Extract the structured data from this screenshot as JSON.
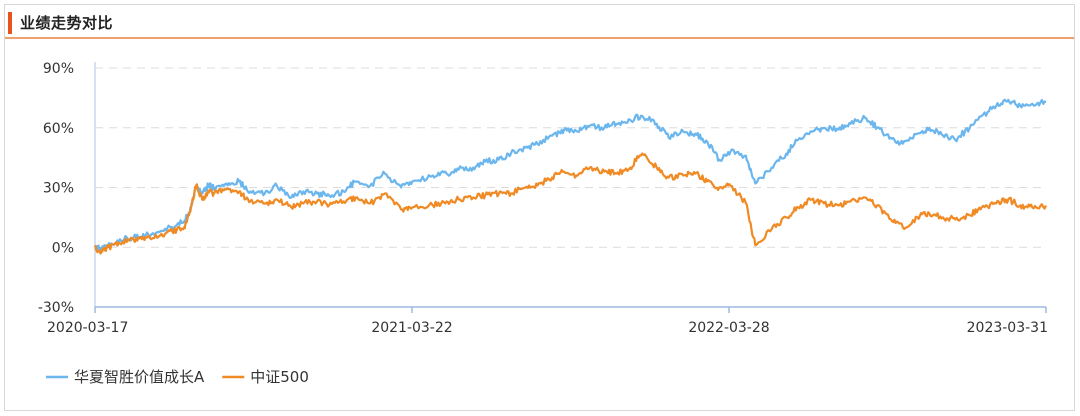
{
  "header": {
    "title": "业绩走势对比"
  },
  "chart_data": {
    "type": "line",
    "ylim": [
      -30,
      90
    ],
    "yticks": [
      -30,
      0,
      30,
      60,
      90
    ],
    "ytick_labels": [
      "-30%",
      "0%",
      "30%",
      "60%",
      "90%"
    ],
    "xlim": [
      "2020-03-17",
      "2023-03-31"
    ],
    "xtick_labels": [
      "2020-03-17",
      "2021-03-22",
      "2022-03-28",
      "2023-03-31"
    ],
    "grid": true,
    "legend_position": "bottom-left",
    "series": [
      {
        "name": "华夏智胜价值成长A",
        "color": "#6cb6ee",
        "points": [
          [
            "2020-03-17",
            0
          ],
          [
            "2020-03-24",
            -1
          ],
          [
            "2020-04-01",
            1
          ],
          [
            "2020-04-15",
            4
          ],
          [
            "2020-05-01",
            5
          ],
          [
            "2020-05-15",
            6
          ],
          [
            "2020-06-01",
            8
          ],
          [
            "2020-06-15",
            10
          ],
          [
            "2020-06-29",
            13
          ],
          [
            "2020-07-07",
            20
          ],
          [
            "2020-07-13",
            31
          ],
          [
            "2020-07-20",
            27
          ],
          [
            "2020-07-27",
            31
          ],
          [
            "2020-08-03",
            30
          ],
          [
            "2020-08-17",
            32
          ],
          [
            "2020-09-01",
            33
          ],
          [
            "2020-09-14",
            28
          ],
          [
            "2020-10-01",
            27
          ],
          [
            "2020-10-15",
            31
          ],
          [
            "2020-11-01",
            25
          ],
          [
            "2020-11-15",
            28
          ],
          [
            "2020-12-01",
            27
          ],
          [
            "2020-12-15",
            26
          ],
          [
            "2021-01-01",
            28
          ],
          [
            "2021-01-15",
            33
          ],
          [
            "2021-02-01",
            31
          ],
          [
            "2021-02-18",
            37
          ],
          [
            "2021-03-09",
            30
          ],
          [
            "2021-03-22",
            33
          ],
          [
            "2021-04-15",
            36
          ],
          [
            "2021-05-01",
            37
          ],
          [
            "2021-05-15",
            39
          ],
          [
            "2021-06-01",
            40
          ],
          [
            "2021-06-15",
            43
          ],
          [
            "2021-07-01",
            44
          ],
          [
            "2021-07-15",
            47
          ],
          [
            "2021-08-01",
            50
          ],
          [
            "2021-08-15",
            52
          ],
          [
            "2021-09-01",
            56
          ],
          [
            "2021-09-15",
            59
          ],
          [
            "2021-10-01",
            58
          ],
          [
            "2021-10-15",
            61
          ],
          [
            "2021-11-01",
            60
          ],
          [
            "2021-11-15",
            62
          ],
          [
            "2021-12-01",
            64
          ],
          [
            "2021-12-15",
            66
          ],
          [
            "2022-01-01",
            62
          ],
          [
            "2022-01-15",
            55
          ],
          [
            "2022-02-01",
            58
          ],
          [
            "2022-02-15",
            57
          ],
          [
            "2022-03-01",
            53
          ],
          [
            "2022-03-15",
            44
          ],
          [
            "2022-03-28",
            48
          ],
          [
            "2022-04-15",
            46
          ],
          [
            "2022-04-26",
            32
          ],
          [
            "2022-05-15",
            40
          ],
          [
            "2022-06-01",
            47
          ],
          [
            "2022-06-15",
            54
          ],
          [
            "2022-07-01",
            58
          ],
          [
            "2022-07-15",
            60
          ],
          [
            "2022-08-01",
            59
          ],
          [
            "2022-08-15",
            62
          ],
          [
            "2022-09-01",
            65
          ],
          [
            "2022-09-15",
            60
          ],
          [
            "2022-10-01",
            55
          ],
          [
            "2022-10-15",
            52
          ],
          [
            "2022-11-01",
            57
          ],
          [
            "2022-11-15",
            60
          ],
          [
            "2022-12-01",
            56
          ],
          [
            "2022-12-15",
            54
          ],
          [
            "2023-01-01",
            60
          ],
          [
            "2023-01-15",
            66
          ],
          [
            "2023-02-01",
            71
          ],
          [
            "2023-02-15",
            74
          ],
          [
            "2023-03-01",
            71
          ],
          [
            "2023-03-15",
            72
          ],
          [
            "2023-03-31",
            73
          ]
        ]
      },
      {
        "name": "中证500",
        "color": "#f08a24",
        "points": [
          [
            "2020-03-17",
            0
          ],
          [
            "2020-03-24",
            -3
          ],
          [
            "2020-04-01",
            0
          ],
          [
            "2020-04-15",
            2
          ],
          [
            "2020-05-01",
            4
          ],
          [
            "2020-05-15",
            5
          ],
          [
            "2020-06-01",
            6
          ],
          [
            "2020-06-15",
            8
          ],
          [
            "2020-06-29",
            10
          ],
          [
            "2020-07-07",
            20
          ],
          [
            "2020-07-13",
            31
          ],
          [
            "2020-07-20",
            24
          ],
          [
            "2020-07-27",
            28
          ],
          [
            "2020-08-03",
            27
          ],
          [
            "2020-08-17",
            29
          ],
          [
            "2020-09-01",
            28
          ],
          [
            "2020-09-14",
            23
          ],
          [
            "2020-10-01",
            22
          ],
          [
            "2020-10-15",
            24
          ],
          [
            "2020-11-01",
            20
          ],
          [
            "2020-11-15",
            22
          ],
          [
            "2020-12-01",
            23
          ],
          [
            "2020-12-15",
            21
          ],
          [
            "2021-01-01",
            23
          ],
          [
            "2021-01-15",
            25
          ],
          [
            "2021-02-01",
            22
          ],
          [
            "2021-02-18",
            27
          ],
          [
            "2021-03-09",
            19
          ],
          [
            "2021-03-22",
            20
          ],
          [
            "2021-04-15",
            21
          ],
          [
            "2021-05-01",
            23
          ],
          [
            "2021-05-15",
            24
          ],
          [
            "2021-06-01",
            25
          ],
          [
            "2021-06-15",
            26
          ],
          [
            "2021-07-01",
            27
          ],
          [
            "2021-07-15",
            27
          ],
          [
            "2021-08-01",
            30
          ],
          [
            "2021-08-15",
            31
          ],
          [
            "2021-09-01",
            35
          ],
          [
            "2021-09-15",
            38
          ],
          [
            "2021-10-01",
            36
          ],
          [
            "2021-10-15",
            40
          ],
          [
            "2021-11-01",
            38
          ],
          [
            "2021-11-15",
            37
          ],
          [
            "2021-12-01",
            40
          ],
          [
            "2021-12-15",
            47
          ],
          [
            "2022-01-01",
            40
          ],
          [
            "2022-01-15",
            35
          ],
          [
            "2022-02-01",
            36
          ],
          [
            "2022-02-15",
            37
          ],
          [
            "2022-03-01",
            33
          ],
          [
            "2022-03-15",
            30
          ],
          [
            "2022-03-28",
            31
          ],
          [
            "2022-04-15",
            22
          ],
          [
            "2022-04-26",
            1
          ],
          [
            "2022-05-15",
            9
          ],
          [
            "2022-06-01",
            15
          ],
          [
            "2022-06-15",
            20
          ],
          [
            "2022-07-01",
            24
          ],
          [
            "2022-07-15",
            22
          ],
          [
            "2022-08-01",
            21
          ],
          [
            "2022-08-15",
            23
          ],
          [
            "2022-09-01",
            25
          ],
          [
            "2022-09-15",
            21
          ],
          [
            "2022-10-01",
            14
          ],
          [
            "2022-10-15",
            10
          ],
          [
            "2022-11-01",
            15
          ],
          [
            "2022-11-15",
            17
          ],
          [
            "2022-12-01",
            15
          ],
          [
            "2022-12-15",
            14
          ],
          [
            "2023-01-01",
            16
          ],
          [
            "2023-01-15",
            20
          ],
          [
            "2023-02-01",
            22
          ],
          [
            "2023-02-15",
            24
          ],
          [
            "2023-03-01",
            21
          ],
          [
            "2023-03-15",
            20
          ],
          [
            "2023-03-31",
            21
          ]
        ]
      }
    ]
  }
}
